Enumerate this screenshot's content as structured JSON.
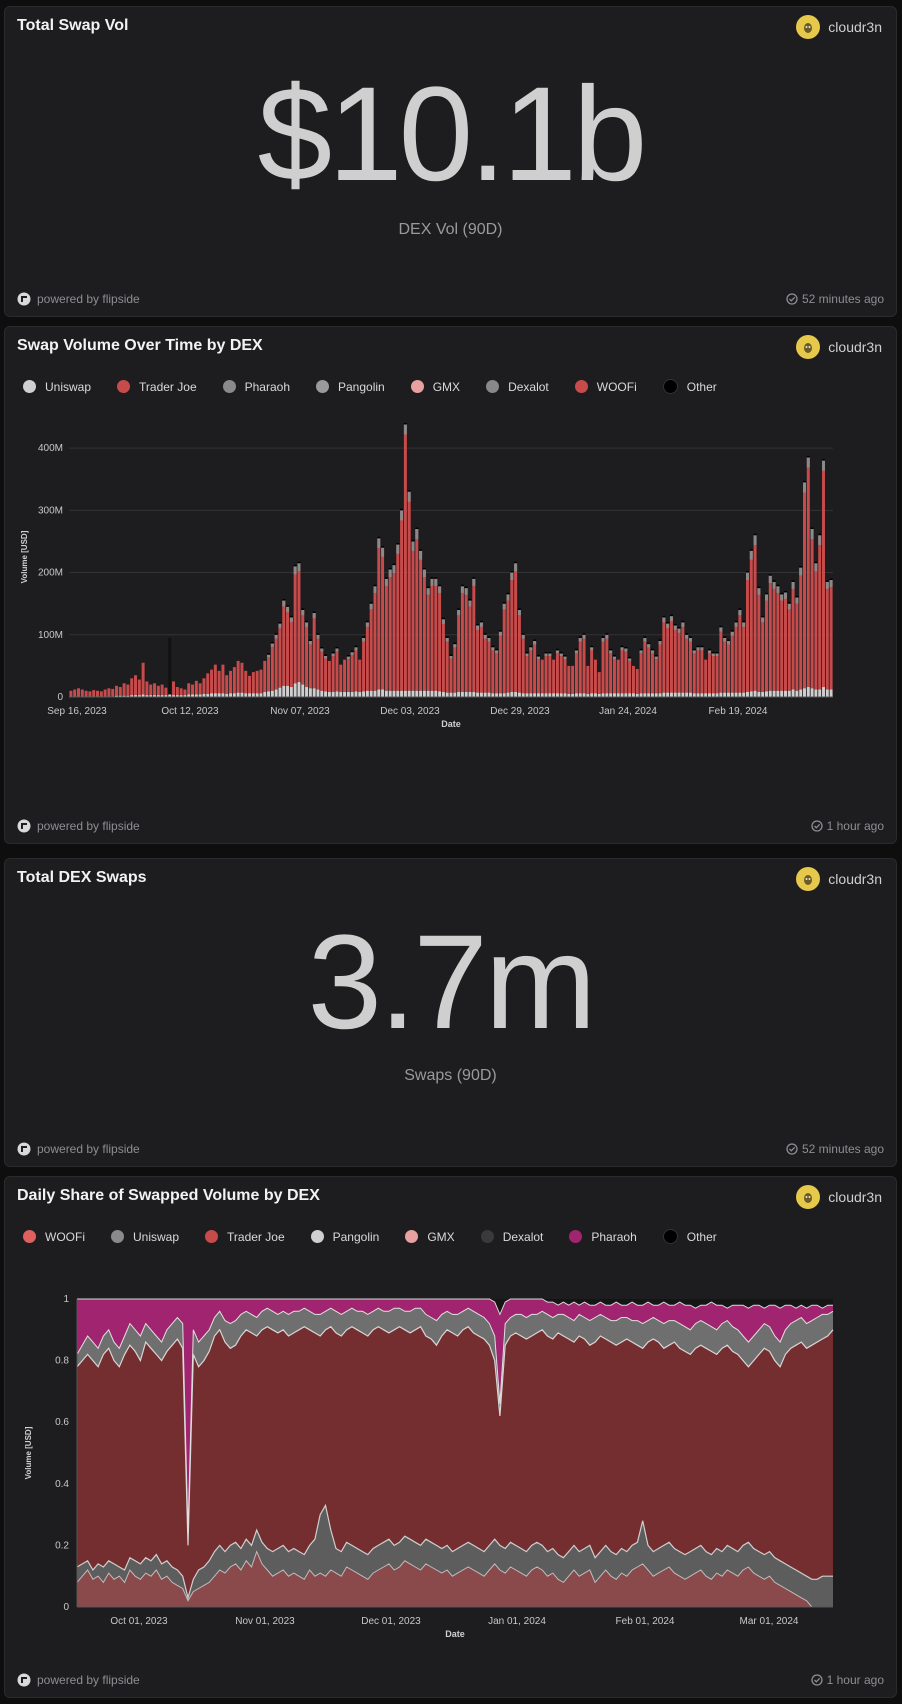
{
  "cards": [
    {
      "title": "Total Swap Vol",
      "author": "cloudr3n",
      "value": "$10.1b",
      "label": "DEX Vol (90D)",
      "powered": "powered by flipside",
      "updated": "52 minutes ago"
    },
    {
      "title": "Swap Volume Over Time by DEX",
      "author": "cloudr3n",
      "powered": "powered by flipside",
      "updated": "1 hour ago"
    },
    {
      "title": "Total DEX Swaps",
      "author": "cloudr3n",
      "value": "3.7m",
      "label": "Swaps (90D)",
      "powered": "powered by flipside",
      "updated": "52 minutes ago"
    },
    {
      "title": "Daily Share of Swapped Volume by DEX",
      "author": "cloudr3n",
      "powered": "powered by flipside",
      "updated": "1 hour ago"
    }
  ],
  "colors": {
    "background": "#0e0e0f",
    "card": "#1d1d1f",
    "trader_joe_bar": "#c84b4b",
    "area_red": "#7a3030",
    "grey": "#8a8a8a",
    "pink": "#a0246f",
    "avatar": "#e6c84a"
  },
  "chart_data": [
    {
      "type": "bar",
      "stacked": true,
      "legend": [
        {
          "name": "Uniswap",
          "color": "#d0d0d0"
        },
        {
          "name": "Trader Joe",
          "color": "#c84b4b"
        },
        {
          "name": "Pharaoh",
          "color": "#8a8a8a"
        },
        {
          "name": "Pangolin",
          "color": "#9a9a9a"
        },
        {
          "name": "GMX",
          "color": "#e8a0a0"
        },
        {
          "name": "Dexalot",
          "color": "#888888"
        },
        {
          "name": "WOOFi",
          "color": "#c84b4b"
        },
        {
          "name": "Other",
          "color": "#000000"
        }
      ],
      "x_ticks": [
        "Sep 16, 2023",
        "Oct 12, 2023",
        "Nov 07, 2023",
        "Dec 03, 2023",
        "Dec 29, 2023",
        "Jan 24, 2024",
        "Feb 19, 2024"
      ],
      "y_ticks": [
        "0",
        "100M",
        "200M",
        "300M",
        "400M"
      ],
      "xlabel": "Date",
      "ylabel": "Volume [USD]",
      "ylim": [
        0,
        450
      ],
      "totals": [
        10,
        12,
        14,
        12,
        10,
        9,
        11,
        10,
        9,
        12,
        14,
        13,
        18,
        16,
        22,
        20,
        30,
        35,
        28,
        55,
        25,
        20,
        22,
        18,
        20,
        15,
        95,
        25,
        16,
        14,
        12,
        22,
        20,
        26,
        22,
        30,
        38,
        44,
        52,
        42,
        52,
        35,
        42,
        48,
        58,
        55,
        42,
        34,
        40,
        42,
        44,
        58,
        68,
        86,
        100,
        118,
        155,
        145,
        128,
        210,
        215,
        140,
        120,
        90,
        135,
        100,
        78,
        66,
        58,
        70,
        78,
        52,
        60,
        65,
        72,
        80,
        60,
        95,
        120,
        150,
        178,
        255,
        240,
        190,
        205,
        212,
        245,
        300,
        438,
        330,
        250,
        270,
        235,
        205,
        175,
        190,
        190,
        178,
        125,
        95,
        66,
        85,
        140,
        178,
        175,
        155,
        190,
        115,
        120,
        100,
        95,
        80,
        75,
        105,
        150,
        165,
        200,
        215,
        140,
        100,
        70,
        80,
        90,
        65,
        60,
        70,
        70,
        60,
        75,
        70,
        65,
        50,
        50,
        75,
        95,
        100,
        50,
        80,
        60,
        40,
        95,
        100,
        75,
        65,
        60,
        80,
        78,
        62,
        50,
        45,
        75,
        95,
        85,
        75,
        65,
        90,
        128,
        118,
        130,
        115,
        110,
        120,
        100,
        95,
        75,
        80,
        80,
        60,
        75,
        70,
        70,
        112,
        95,
        90,
        105,
        120,
        140,
        120,
        200,
        235,
        260,
        175,
        128,
        165,
        195,
        185,
        178,
        165,
        168,
        150,
        185,
        160,
        208,
        345,
        385,
        270,
        215,
        260,
        380,
        185,
        188
      ],
      "uniswap": [
        1,
        1,
        1,
        1,
        1,
        1,
        1,
        1,
        1,
        1,
        1,
        1,
        2,
        2,
        2,
        2,
        3,
        3,
        3,
        4,
        3,
        3,
        3,
        3,
        3,
        3,
        4,
        3,
        3,
        3,
        3,
        4,
        4,
        4,
        4,
        5,
        5,
        6,
        6,
        6,
        6,
        5,
        6,
        6,
        7,
        7,
        6,
        6,
        6,
        6,
        6,
        8,
        9,
        10,
        12,
        15,
        18,
        18,
        16,
        22,
        24,
        20,
        16,
        14,
        14,
        12,
        10,
        9,
        8,
        8,
        9,
        8,
        8,
        8,
        8,
        9,
        8,
        9,
        10,
        10,
        10,
        12,
        12,
        10,
        10,
        10,
        10,
        10,
        10,
        10,
        10,
        10,
        10,
        10,
        10,
        10,
        10,
        9,
        8,
        7,
        7,
        7,
        8,
        8,
        8,
        8,
        8,
        7,
        7,
        7,
        7,
        6,
        6,
        6,
        6,
        7,
        8,
        8,
        7,
        6,
        6,
        6,
        6,
        6,
        6,
        6,
        6,
        6,
        6,
        6,
        6,
        5,
        5,
        6,
        6,
        6,
        5,
        6,
        6,
        5,
        6,
        6,
        6,
        6,
        6,
        6,
        6,
        6,
        6,
        5,
        6,
        6,
        6,
        6,
        6,
        6,
        7,
        7,
        7,
        7,
        7,
        7,
        7,
        7,
        6,
        6,
        6,
        6,
        6,
        6,
        6,
        7,
        7,
        7,
        7,
        7,
        7,
        7,
        8,
        9,
        10,
        8,
        8,
        9,
        10,
        10,
        10,
        10,
        10,
        10,
        12,
        10,
        12,
        14,
        16,
        14,
        12,
        12,
        16,
        12,
        12
      ]
    },
    {
      "type": "area",
      "stacked": true,
      "normalized": true,
      "legend": [
        {
          "name": "WOOFi",
          "color": "#e06060"
        },
        {
          "name": "Uniswap",
          "color": "#8a8a8a"
        },
        {
          "name": "Trader Joe",
          "color": "#c84b4b"
        },
        {
          "name": "Pangolin",
          "color": "#cfcfcf"
        },
        {
          "name": "GMX",
          "color": "#e8a0a0"
        },
        {
          "name": "Dexalot",
          "color": "#3a3a3a"
        },
        {
          "name": "Pharaoh",
          "color": "#a0246f"
        },
        {
          "name": "Other",
          "color": "#000000"
        }
      ],
      "x_ticks": [
        "Oct 01, 2023",
        "Nov 01, 2023",
        "Dec 01, 2023",
        "Jan 01, 2024",
        "Feb 01, 2024",
        "Mar 01, 2024"
      ],
      "y_ticks": [
        "0",
        "0.2",
        "0.4",
        "0.6",
        "0.8",
        "1"
      ],
      "xlabel": "Date",
      "ylabel": "Volume [USD]",
      "ylim": [
        0,
        1
      ],
      "woofi_upper": [
        0.08,
        0.1,
        0.12,
        0.09,
        0.1,
        0.08,
        0.11,
        0.09,
        0.1,
        0.08,
        0.12,
        0.1,
        0.09,
        0.11,
        0.1,
        0.12,
        0.09,
        0.1,
        0.08,
        0.07,
        0.06,
        0.02,
        0.05,
        0.06,
        0.07,
        0.08,
        0.1,
        0.12,
        0.11,
        0.13,
        0.14,
        0.12,
        0.15,
        0.13,
        0.18,
        0.14,
        0.12,
        0.1,
        0.11,
        0.12,
        0.1,
        0.11,
        0.1,
        0.09,
        0.12,
        0.1,
        0.11,
        0.1,
        0.12,
        0.11,
        0.1,
        0.13,
        0.12,
        0.11,
        0.1,
        0.09,
        0.11,
        0.12,
        0.13,
        0.14,
        0.12,
        0.13,
        0.15,
        0.14,
        0.13,
        0.12,
        0.14,
        0.13,
        0.12,
        0.11,
        0.12,
        0.1,
        0.11,
        0.12,
        0.13,
        0.12,
        0.11,
        0.1,
        0.12,
        0.14,
        0.12,
        0.11,
        0.13,
        0.12,
        0.11,
        0.1,
        0.12,
        0.13,
        0.12,
        0.1,
        0.11,
        0.09,
        0.08,
        0.1,
        0.12,
        0.1,
        0.11,
        0.12,
        0.08,
        0.1,
        0.12,
        0.1,
        0.09,
        0.11,
        0.1,
        0.12,
        0.13,
        0.14,
        0.12,
        0.1,
        0.11,
        0.12,
        0.13,
        0.11,
        0.1,
        0.09,
        0.1,
        0.11,
        0.12,
        0.1,
        0.09,
        0.11,
        0.1,
        0.12,
        0.11,
        0.1,
        0.12,
        0.13,
        0.11,
        0.1,
        0.09,
        0.1,
        0.08,
        0.07,
        0.06,
        0.05,
        0.04,
        0.03,
        0.02,
        0.0,
        0.0,
        0.0,
        0.0,
        0.0
      ],
      "uniswap_upper": [
        0.13,
        0.14,
        0.15,
        0.12,
        0.14,
        0.13,
        0.15,
        0.14,
        0.13,
        0.12,
        0.16,
        0.15,
        0.14,
        0.16,
        0.15,
        0.17,
        0.14,
        0.15,
        0.13,
        0.12,
        0.1,
        0.03,
        0.09,
        0.12,
        0.13,
        0.15,
        0.18,
        0.2,
        0.18,
        0.2,
        0.21,
        0.19,
        0.22,
        0.2,
        0.25,
        0.21,
        0.19,
        0.18,
        0.19,
        0.2,
        0.18,
        0.19,
        0.18,
        0.17,
        0.2,
        0.22,
        0.3,
        0.33,
        0.25,
        0.19,
        0.18,
        0.21,
        0.2,
        0.19,
        0.18,
        0.17,
        0.19,
        0.2,
        0.21,
        0.22,
        0.2,
        0.21,
        0.23,
        0.22,
        0.21,
        0.2,
        0.22,
        0.21,
        0.2,
        0.19,
        0.2,
        0.18,
        0.19,
        0.2,
        0.21,
        0.2,
        0.19,
        0.18,
        0.2,
        0.22,
        0.2,
        0.19,
        0.21,
        0.2,
        0.19,
        0.18,
        0.2,
        0.21,
        0.2,
        0.18,
        0.19,
        0.17,
        0.16,
        0.18,
        0.2,
        0.18,
        0.19,
        0.2,
        0.16,
        0.18,
        0.2,
        0.18,
        0.17,
        0.19,
        0.18,
        0.2,
        0.21,
        0.28,
        0.2,
        0.18,
        0.19,
        0.2,
        0.21,
        0.19,
        0.18,
        0.17,
        0.18,
        0.19,
        0.2,
        0.18,
        0.17,
        0.19,
        0.18,
        0.2,
        0.19,
        0.18,
        0.2,
        0.21,
        0.19,
        0.18,
        0.17,
        0.18,
        0.16,
        0.15,
        0.14,
        0.13,
        0.12,
        0.11,
        0.1,
        0.09,
        0.09,
        0.1,
        0.1,
        0.1
      ],
      "trader_joe_upper": [
        0.78,
        0.8,
        0.82,
        0.8,
        0.78,
        0.82,
        0.84,
        0.8,
        0.78,
        0.82,
        0.85,
        0.83,
        0.8,
        0.86,
        0.84,
        0.82,
        0.8,
        0.83,
        0.85,
        0.87,
        0.84,
        0.2,
        0.82,
        0.78,
        0.8,
        0.83,
        0.88,
        0.9,
        0.86,
        0.84,
        0.85,
        0.88,
        0.9,
        0.89,
        0.88,
        0.9,
        0.91,
        0.9,
        0.89,
        0.9,
        0.88,
        0.89,
        0.9,
        0.91,
        0.9,
        0.89,
        0.88,
        0.9,
        0.91,
        0.89,
        0.88,
        0.9,
        0.91,
        0.9,
        0.89,
        0.88,
        0.9,
        0.91,
        0.9,
        0.89,
        0.9,
        0.91,
        0.9,
        0.89,
        0.9,
        0.91,
        0.88,
        0.87,
        0.85,
        0.88,
        0.9,
        0.89,
        0.88,
        0.9,
        0.91,
        0.89,
        0.88,
        0.87,
        0.85,
        0.8,
        0.62,
        0.85,
        0.88,
        0.89,
        0.88,
        0.87,
        0.88,
        0.89,
        0.9,
        0.88,
        0.87,
        0.89,
        0.88,
        0.87,
        0.86,
        0.88,
        0.87,
        0.85,
        0.86,
        0.88,
        0.87,
        0.86,
        0.85,
        0.86,
        0.87,
        0.86,
        0.85,
        0.84,
        0.86,
        0.87,
        0.86,
        0.84,
        0.85,
        0.86,
        0.84,
        0.83,
        0.82,
        0.84,
        0.85,
        0.84,
        0.83,
        0.82,
        0.84,
        0.85,
        0.83,
        0.82,
        0.8,
        0.78,
        0.8,
        0.82,
        0.84,
        0.83,
        0.8,
        0.78,
        0.82,
        0.84,
        0.85,
        0.86,
        0.84,
        0.85,
        0.86,
        0.87,
        0.88,
        0.9
      ],
      "upper_band": [
        0.82,
        0.85,
        0.88,
        0.86,
        0.84,
        0.88,
        0.9,
        0.86,
        0.84,
        0.88,
        0.92,
        0.9,
        0.88,
        0.92,
        0.9,
        0.88,
        0.86,
        0.9,
        0.92,
        0.94,
        0.92,
        0.24,
        0.9,
        0.86,
        0.88,
        0.9,
        0.94,
        0.96,
        0.93,
        0.92,
        0.93,
        0.95,
        0.96,
        0.95,
        0.94,
        0.96,
        0.97,
        0.96,
        0.95,
        0.96,
        0.95,
        0.96,
        0.96,
        0.97,
        0.96,
        0.95,
        0.95,
        0.96,
        0.97,
        0.96,
        0.95,
        0.96,
        0.97,
        0.96,
        0.96,
        0.95,
        0.96,
        0.97,
        0.96,
        0.96,
        0.97,
        0.97,
        0.96,
        0.96,
        0.97,
        0.97,
        0.95,
        0.94,
        0.93,
        0.95,
        0.96,
        0.95,
        0.95,
        0.96,
        0.97,
        0.96,
        0.95,
        0.94,
        0.92,
        0.88,
        0.66,
        0.92,
        0.94,
        0.95,
        0.95,
        0.94,
        0.95,
        0.95,
        0.96,
        0.95,
        0.94,
        0.95,
        0.95,
        0.94,
        0.93,
        0.95,
        0.94,
        0.93,
        0.94,
        0.95,
        0.94,
        0.93,
        0.93,
        0.94,
        0.94,
        0.93,
        0.93,
        0.92,
        0.93,
        0.94,
        0.93,
        0.92,
        0.93,
        0.93,
        0.92,
        0.91,
        0.9,
        0.92,
        0.93,
        0.92,
        0.91,
        0.9,
        0.92,
        0.93,
        0.91,
        0.9,
        0.88,
        0.86,
        0.88,
        0.9,
        0.92,
        0.91,
        0.88,
        0.86,
        0.9,
        0.92,
        0.93,
        0.94,
        0.92,
        0.93,
        0.94,
        0.95,
        0.95,
        0.96
      ],
      "pharaoh_band": [
        1.0,
        1.0,
        1.0,
        1.0,
        1.0,
        1.0,
        1.0,
        1.0,
        1.0,
        1.0,
        1.0,
        1.0,
        1.0,
        1.0,
        1.0,
        1.0,
        1.0,
        1.0,
        1.0,
        1.0,
        1.0,
        1.0,
        1.0,
        1.0,
        1.0,
        1.0,
        1.0,
        1.0,
        1.0,
        1.0,
        1.0,
        1.0,
        1.0,
        1.0,
        1.0,
        1.0,
        1.0,
        1.0,
        1.0,
        1.0,
        1.0,
        1.0,
        1.0,
        1.0,
        1.0,
        1.0,
        1.0,
        1.0,
        1.0,
        1.0,
        1.0,
        1.0,
        1.0,
        1.0,
        1.0,
        1.0,
        1.0,
        1.0,
        1.0,
        1.0,
        1.0,
        1.0,
        1.0,
        1.0,
        1.0,
        1.0,
        1.0,
        1.0,
        1.0,
        1.0,
        1.0,
        1.0,
        1.0,
        1.0,
        1.0,
        1.0,
        1.0,
        1.0,
        1.0,
        0.99,
        0.95,
        0.99,
        1.0,
        1.0,
        1.0,
        1.0,
        1.0,
        1.0,
        1.0,
        0.99,
        0.99,
        0.98,
        0.99,
        0.98,
        0.99,
        0.98,
        0.99,
        0.98,
        0.98,
        0.99,
        0.98,
        0.98,
        0.99,
        0.98,
        0.98,
        0.99,
        0.98,
        0.98,
        0.99,
        0.98,
        0.98,
        0.99,
        0.98,
        0.98,
        0.99,
        0.98,
        0.98,
        0.97,
        0.98,
        0.98,
        0.99,
        0.98,
        0.98,
        0.97,
        0.98,
        0.98,
        0.98,
        0.97,
        0.98,
        0.98,
        0.97,
        0.98,
        0.98,
        0.97,
        0.98,
        0.98,
        0.97,
        0.98,
        0.97,
        0.98,
        0.98,
        0.97,
        0.98,
        0.98
      ]
    }
  ]
}
